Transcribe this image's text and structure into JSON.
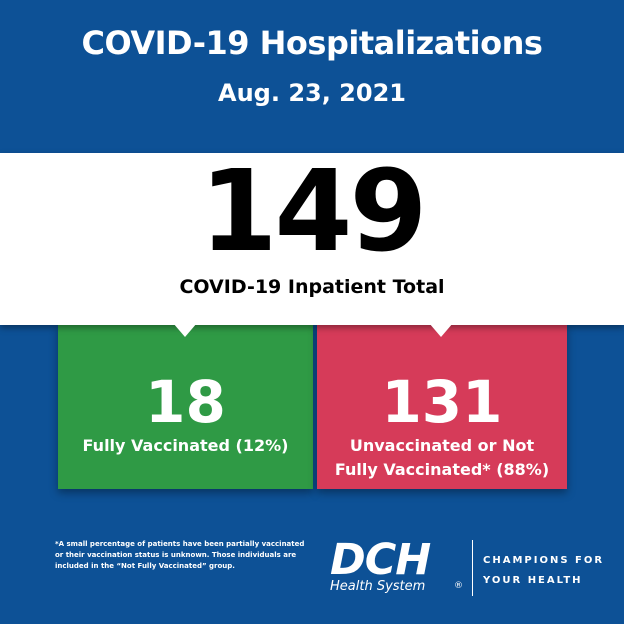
{
  "header": {
    "title": "COVID-19 Hospitalizations",
    "date": "Aug. 23, 2021"
  },
  "total": {
    "value": "149",
    "label": "COVID-19 Inpatient Total"
  },
  "vaccinated": {
    "value": "18",
    "label": "Fully Vaccinated (12%)",
    "color": "#2f9a45"
  },
  "unvaccinated": {
    "value": "131",
    "label_line1": "Unvaccinated or Not",
    "label_line2": "Fully Vaccinated* (88%)",
    "color": "#d63b59"
  },
  "footnote": {
    "line1": "*A small percentage of patients have been partially vaccinated",
    "line2": "or their vaccination status is unknown. Those individuals are",
    "line3": "included in the “Not Fully Vaccinated” group."
  },
  "brand": {
    "logo_text": "DCH",
    "logo_subtitle": "Health System",
    "registered_mark": "®",
    "tagline_line1": "CHAMPIONS FOR",
    "tagline_line2": "YOUR HEALTH",
    "background_color": "#0d5196"
  }
}
